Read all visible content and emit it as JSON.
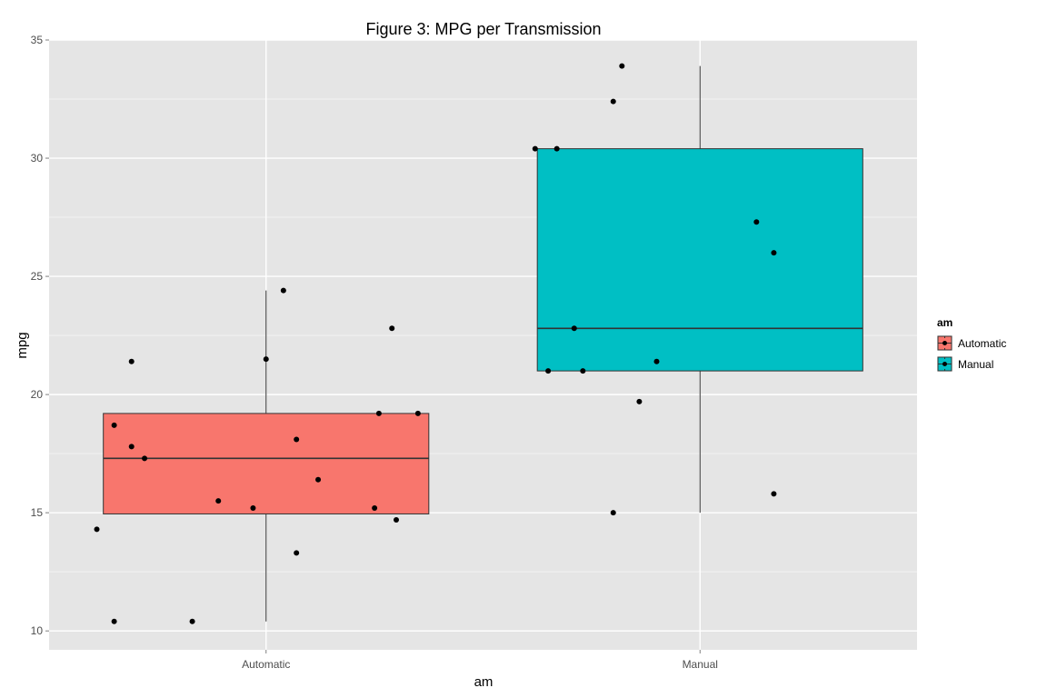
{
  "chart_data": {
    "type": "boxplot",
    "title": "Figure 3: MPG per Transmission",
    "xlabel": "am",
    "ylabel": "mpg",
    "ylim": [
      9.2,
      35.0
    ],
    "yticks": [
      10,
      15,
      20,
      25,
      30,
      35
    ],
    "categories": [
      "Automatic",
      "Manual"
    ],
    "grid": true,
    "legend": {
      "title": "am",
      "position": "right",
      "entries": [
        "Automatic",
        "Manual"
      ]
    },
    "colors": {
      "panel": "#e5e5e5",
      "grid_major": "#ffffff",
      "grid_minor": "#f2f2f2",
      "Automatic": "#f8766d",
      "Manual": "#00bfc4"
    },
    "boxes": [
      {
        "category": "Automatic",
        "whisker_low": 10.4,
        "q1": 14.95,
        "median": 17.3,
        "q3": 19.2,
        "whisker_high": 24.4
      },
      {
        "category": "Manual",
        "whisker_low": 15.0,
        "q1": 21.0,
        "median": 22.8,
        "q3": 30.4,
        "whisker_high": 33.9
      }
    ],
    "points": [
      {
        "category": "Automatic",
        "jitter": -0.39,
        "y": 14.3
      },
      {
        "category": "Automatic",
        "jitter": -0.35,
        "y": 10.4
      },
      {
        "category": "Automatic",
        "jitter": -0.35,
        "y": 18.7
      },
      {
        "category": "Automatic",
        "jitter": -0.31,
        "y": 21.4
      },
      {
        "category": "Automatic",
        "jitter": -0.31,
        "y": 17.8
      },
      {
        "category": "Automatic",
        "jitter": -0.28,
        "y": 17.3
      },
      {
        "category": "Automatic",
        "jitter": -0.17,
        "y": 10.4
      },
      {
        "category": "Automatic",
        "jitter": -0.11,
        "y": 15.5
      },
      {
        "category": "Automatic",
        "jitter": -0.03,
        "y": 15.2
      },
      {
        "category": "Automatic",
        "jitter": 0.0,
        "y": 21.5
      },
      {
        "category": "Automatic",
        "jitter": 0.04,
        "y": 24.4
      },
      {
        "category": "Automatic",
        "jitter": 0.07,
        "y": 13.3
      },
      {
        "category": "Automatic",
        "jitter": 0.07,
        "y": 18.1
      },
      {
        "category": "Automatic",
        "jitter": 0.12,
        "y": 16.4
      },
      {
        "category": "Automatic",
        "jitter": 0.25,
        "y": 15.2
      },
      {
        "category": "Automatic",
        "jitter": 0.26,
        "y": 19.2
      },
      {
        "category": "Automatic",
        "jitter": 0.29,
        "y": 22.8
      },
      {
        "category": "Automatic",
        "jitter": 0.3,
        "y": 14.7
      },
      {
        "category": "Automatic",
        "jitter": 0.35,
        "y": 19.2
      },
      {
        "category": "Manual",
        "jitter": -0.38,
        "y": 30.4
      },
      {
        "category": "Manual",
        "jitter": -0.35,
        "y": 21.0
      },
      {
        "category": "Manual",
        "jitter": -0.33,
        "y": 30.4
      },
      {
        "category": "Manual",
        "jitter": -0.29,
        "y": 22.8
      },
      {
        "category": "Manual",
        "jitter": -0.27,
        "y": 21.0
      },
      {
        "category": "Manual",
        "jitter": -0.2,
        "y": 32.4
      },
      {
        "category": "Manual",
        "jitter": -0.2,
        "y": 15.0
      },
      {
        "category": "Manual",
        "jitter": -0.18,
        "y": 33.9
      },
      {
        "category": "Manual",
        "jitter": -0.14,
        "y": 19.7
      },
      {
        "category": "Manual",
        "jitter": -0.1,
        "y": 21.4
      },
      {
        "category": "Manual",
        "jitter": 0.13,
        "y": 27.3
      },
      {
        "category": "Manual",
        "jitter": 0.17,
        "y": 26.0
      },
      {
        "category": "Manual",
        "jitter": 0.17,
        "y": 15.8
      }
    ]
  }
}
